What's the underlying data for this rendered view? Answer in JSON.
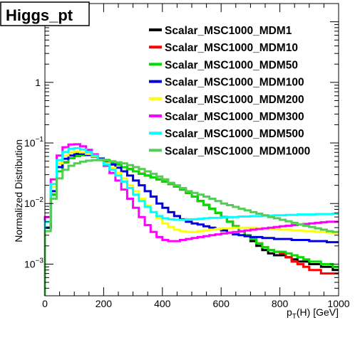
{
  "chart_data": {
    "type": "line",
    "title": "Higgs_pt",
    "xlabel": "p_{T}(H) [GeV]",
    "xlabel_main": "p",
    "xlabel_sub": "T",
    "xlabel_rest": "(H) [GeV]",
    "ylabel": "Normalized Distribution",
    "xlim": [
      0,
      1000
    ],
    "ylim": [
      0.0003,
      20
    ],
    "yscale": "log",
    "x_ticks": [
      "0",
      "200",
      "400",
      "600",
      "800",
      "1000"
    ],
    "x_tick_values": [
      0,
      200,
      400,
      600,
      800,
      1000
    ],
    "y_ticks": [
      {
        "value": 1,
        "base": "1",
        "exp": ""
      },
      {
        "value": 0.1,
        "base": "10",
        "exp": "−1"
      },
      {
        "value": 0.01,
        "base": "10",
        "exp": "−2"
      },
      {
        "value": 0.001,
        "base": "10",
        "exp": "−3"
      }
    ],
    "legend_position": "top-right",
    "grid": false,
    "series": [
      {
        "name": "Scalar_MSC1000_MDM1",
        "color": "#000000",
        "x": [
          0,
          20,
          40,
          60,
          80,
          100,
          120,
          140,
          160,
          180,
          200,
          220,
          240,
          260,
          280,
          300,
          320,
          340,
          360,
          380,
          400,
          420,
          440,
          460,
          480,
          500,
          520,
          540,
          560,
          580,
          600,
          620,
          640,
          660,
          680,
          700,
          720,
          740,
          760,
          780,
          800,
          820,
          840,
          860,
          880,
          900,
          920,
          940,
          960,
          980
        ],
        "values": [
          0.004,
          0.014,
          0.034,
          0.048,
          0.056,
          0.061,
          0.063,
          0.063,
          0.06,
          0.056,
          0.052,
          0.048,
          0.044,
          0.04,
          0.037,
          0.034,
          0.031,
          0.029,
          0.027,
          0.025,
          0.023,
          0.021,
          0.019,
          0.017,
          0.015,
          0.013,
          0.011,
          0.0095,
          0.0082,
          0.007,
          0.006,
          0.005,
          0.0042,
          0.0035,
          0.0029,
          0.0024,
          0.002,
          0.0017,
          0.0015,
          0.0014,
          0.0014,
          0.0013,
          0.0012,
          0.0011,
          0.0011,
          0.001,
          0.001,
          0.0009,
          0.0009,
          0.0008
        ]
      },
      {
        "name": "Scalar_MSC1000_MDM10",
        "color": "#ff0000",
        "x": [
          0,
          20,
          40,
          60,
          80,
          100,
          120,
          140,
          160,
          180,
          200,
          220,
          240,
          260,
          280,
          300,
          320,
          340,
          360,
          380,
          400,
          420,
          440,
          460,
          480,
          500,
          520,
          540,
          560,
          580,
          600,
          620,
          640,
          660,
          680,
          700,
          720,
          740,
          760,
          780,
          800,
          820,
          840,
          860,
          880,
          900,
          920,
          940,
          960,
          980
        ],
        "values": [
          0.004,
          0.014,
          0.034,
          0.048,
          0.056,
          0.061,
          0.063,
          0.063,
          0.06,
          0.056,
          0.052,
          0.048,
          0.044,
          0.04,
          0.037,
          0.034,
          0.031,
          0.029,
          0.027,
          0.025,
          0.023,
          0.021,
          0.019,
          0.017,
          0.015,
          0.013,
          0.011,
          0.0095,
          0.0082,
          0.007,
          0.006,
          0.005,
          0.0042,
          0.0035,
          0.003,
          0.0026,
          0.0022,
          0.0019,
          0.0017,
          0.0016,
          0.0015,
          0.0013,
          0.0011,
          0.001,
          0.0009,
          0.0008,
          0.0008,
          0.0007,
          0.0007,
          0.0007
        ]
      },
      {
        "name": "Scalar_MSC1000_MDM50",
        "color": "#00dd00",
        "x": [
          0,
          20,
          40,
          60,
          80,
          100,
          120,
          140,
          160,
          180,
          200,
          220,
          240,
          260,
          280,
          300,
          320,
          340,
          360,
          380,
          400,
          420,
          440,
          460,
          480,
          500,
          520,
          540,
          560,
          580,
          600,
          620,
          640,
          660,
          680,
          700,
          720,
          740,
          760,
          780,
          800,
          820,
          840,
          860,
          880,
          900,
          920,
          940,
          960,
          980
        ],
        "values": [
          0.004,
          0.014,
          0.034,
          0.048,
          0.056,
          0.061,
          0.063,
          0.063,
          0.06,
          0.056,
          0.052,
          0.048,
          0.044,
          0.04,
          0.037,
          0.034,
          0.031,
          0.029,
          0.027,
          0.025,
          0.023,
          0.021,
          0.019,
          0.017,
          0.015,
          0.013,
          0.011,
          0.0095,
          0.0082,
          0.007,
          0.006,
          0.005,
          0.0042,
          0.0035,
          0.003,
          0.0026,
          0.0022,
          0.0019,
          0.0017,
          0.0016,
          0.0016,
          0.0015,
          0.0014,
          0.0013,
          0.0012,
          0.0011,
          0.0011,
          0.001,
          0.001,
          0.0009
        ]
      },
      {
        "name": "Scalar_MSC1000_MDM100",
        "color": "#0000dd",
        "x": [
          0,
          20,
          40,
          60,
          80,
          100,
          120,
          140,
          160,
          180,
          200,
          220,
          240,
          260,
          280,
          300,
          320,
          340,
          360,
          380,
          400,
          420,
          440,
          460,
          480,
          500,
          520,
          540,
          560,
          580,
          600,
          620,
          640,
          660,
          680,
          700,
          720,
          740,
          760,
          780,
          800,
          820,
          840,
          860,
          880,
          900,
          920,
          940,
          960,
          980
        ],
        "values": [
          0.004,
          0.016,
          0.04,
          0.055,
          0.062,
          0.066,
          0.066,
          0.064,
          0.059,
          0.054,
          0.049,
          0.044,
          0.039,
          0.034,
          0.029,
          0.024,
          0.02,
          0.016,
          0.013,
          0.01,
          0.0085,
          0.0072,
          0.0062,
          0.0055,
          0.005,
          0.0047,
          0.0045,
          0.0042,
          0.004,
          0.0038,
          0.0036,
          0.0033,
          0.0031,
          0.003,
          0.0029,
          0.0028,
          0.0028,
          0.0027,
          0.0027,
          0.0026,
          0.0026,
          0.0026,
          0.0025,
          0.0025,
          0.0025,
          0.0024,
          0.0024,
          0.0024,
          0.0023,
          0.0023
        ]
      },
      {
        "name": "Scalar_MSC1000_MDM200",
        "color": "#ffff00",
        "x": [
          0,
          20,
          40,
          60,
          80,
          100,
          120,
          140,
          160,
          180,
          200,
          220,
          240,
          260,
          280,
          300,
          320,
          340,
          360,
          380,
          400,
          420,
          440,
          460,
          480,
          500,
          520,
          540,
          560,
          580,
          600,
          620,
          640,
          660,
          680,
          700,
          720,
          740,
          760,
          780,
          800,
          820,
          840,
          860,
          880,
          900,
          920,
          940,
          960,
          980
        ],
        "values": [
          0.005,
          0.019,
          0.046,
          0.062,
          0.07,
          0.072,
          0.07,
          0.066,
          0.06,
          0.053,
          0.046,
          0.039,
          0.032,
          0.026,
          0.02,
          0.016,
          0.012,
          0.0092,
          0.0072,
          0.0057,
          0.0047,
          0.0041,
          0.0037,
          0.0035,
          0.0034,
          0.0034,
          0.0035,
          0.0036,
          0.0037,
          0.0038,
          0.0039,
          0.0039,
          0.004,
          0.004,
          0.004,
          0.004,
          0.0039,
          0.0039,
          0.0038,
          0.0038,
          0.0037,
          0.0037,
          0.0036,
          0.0036,
          0.0035,
          0.0035,
          0.0034,
          0.0034,
          0.0033,
          0.0033
        ]
      },
      {
        "name": "Scalar_MSC1000_MDM300",
        "color": "#ff00ff",
        "x": [
          0,
          20,
          40,
          60,
          80,
          100,
          120,
          140,
          160,
          180,
          200,
          220,
          240,
          260,
          280,
          300,
          320,
          340,
          360,
          380,
          400,
          420,
          440,
          460,
          480,
          500,
          520,
          540,
          560,
          580,
          600,
          620,
          640,
          660,
          680,
          700,
          720,
          740,
          760,
          780,
          800,
          820,
          840,
          860,
          880,
          900,
          920,
          940,
          960,
          980
        ],
        "values": [
          0.006,
          0.025,
          0.062,
          0.085,
          0.094,
          0.095,
          0.088,
          0.077,
          0.065,
          0.053,
          0.042,
          0.032,
          0.024,
          0.017,
          0.012,
          0.0085,
          0.006,
          0.0044,
          0.0034,
          0.0028,
          0.0025,
          0.0024,
          0.0024,
          0.0025,
          0.0026,
          0.0027,
          0.0028,
          0.0029,
          0.003,
          0.0031,
          0.0032,
          0.0033,
          0.0034,
          0.0035,
          0.0036,
          0.0037,
          0.0038,
          0.0039,
          0.004,
          0.0041,
          0.0042,
          0.0043,
          0.0044,
          0.0045,
          0.0046,
          0.0047,
          0.0048,
          0.0049,
          0.005,
          0.005
        ]
      },
      {
        "name": "Scalar_MSC1000_MDM500",
        "color": "#00ffff",
        "x": [
          0,
          20,
          40,
          60,
          80,
          100,
          120,
          140,
          160,
          180,
          200,
          220,
          240,
          260,
          280,
          300,
          320,
          340,
          360,
          380,
          400,
          420,
          440,
          460,
          480,
          500,
          520,
          540,
          560,
          580,
          600,
          620,
          640,
          660,
          680,
          700,
          720,
          740,
          760,
          780,
          800,
          820,
          840,
          860,
          880,
          900,
          920,
          940,
          960,
          980
        ],
        "values": [
          0.005,
          0.021,
          0.052,
          0.071,
          0.08,
          0.082,
          0.078,
          0.071,
          0.062,
          0.053,
          0.044,
          0.036,
          0.029,
          0.023,
          0.018,
          0.014,
          0.011,
          0.0088,
          0.0072,
          0.0062,
          0.0057,
          0.0055,
          0.0054,
          0.0054,
          0.0055,
          0.0055,
          0.0056,
          0.0057,
          0.0058,
          0.0058,
          0.0059,
          0.006,
          0.006,
          0.0061,
          0.0061,
          0.0062,
          0.0062,
          0.0063,
          0.0063,
          0.0064,
          0.0064,
          0.0065,
          0.0065,
          0.0066,
          0.0066,
          0.0066,
          0.0067,
          0.0067,
          0.0067,
          0.0068
        ]
      },
      {
        "name": "Scalar_MSC1000_MDM1000",
        "color": "#55cc55",
        "x": [
          0,
          20,
          40,
          60,
          80,
          100,
          120,
          140,
          160,
          180,
          200,
          220,
          240,
          260,
          280,
          300,
          320,
          340,
          360,
          380,
          400,
          420,
          440,
          460,
          480,
          500,
          520,
          540,
          560,
          580,
          600,
          620,
          640,
          660,
          680,
          700,
          720,
          740,
          760,
          780,
          800,
          820,
          840,
          860,
          880,
          900,
          920,
          940,
          960,
          980
        ],
        "values": [
          0.0035,
          0.012,
          0.026,
          0.036,
          0.042,
          0.046,
          0.049,
          0.051,
          0.052,
          0.052,
          0.051,
          0.05,
          0.048,
          0.046,
          0.043,
          0.04,
          0.037,
          0.034,
          0.031,
          0.028,
          0.025,
          0.022,
          0.02,
          0.018,
          0.016,
          0.015,
          0.014,
          0.013,
          0.012,
          0.011,
          0.01,
          0.0094,
          0.0088,
          0.0082,
          0.0077,
          0.0072,
          0.0068,
          0.0064,
          0.006,
          0.0057,
          0.0054,
          0.0051,
          0.0048,
          0.0045,
          0.0043,
          0.0041,
          0.0039,
          0.0037,
          0.0035,
          0.0034
        ]
      }
    ]
  }
}
